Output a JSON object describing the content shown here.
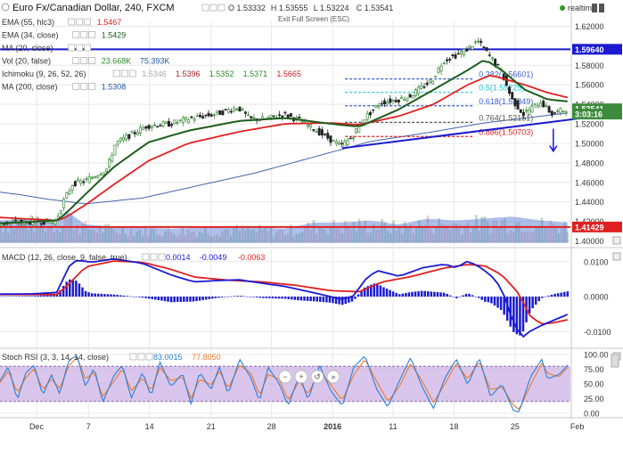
{
  "header": {
    "symbol_title": "Euro Fx/Canadian Dollar, 240, FXCM",
    "ohlc": {
      "o": "O 1.53332",
      "h": "H 1.53555",
      "l": "L 1.53224",
      "c": "C 1.53541"
    },
    "realtime_label": "realtime",
    "exit_fullscreen": "Exit Full Screen (ESC)"
  },
  "colors": {
    "background": "#ffffff",
    "grid": "#e8e8e8",
    "up_candle": "#3c8a3c",
    "down_candle": "#222222",
    "ema55": "#e02020",
    "ema34": "#1e5e1e",
    "ma200": "#4466aa",
    "macd": "#1a1ad0",
    "signal": "#e02020",
    "histogram": "#1a1ad0",
    "stoch_k": "#2a7fd6",
    "stoch_d": "#f07a28",
    "stoch_band": "#cdb3e6",
    "trendline": "#1a1ad0",
    "resistance": "#1a1ad0",
    "support": "#e02020"
  },
  "indicators": [
    {
      "label": "EMA (55, hlc3)",
      "values": [
        {
          "text": "1.5467",
          "color": "#e02020"
        }
      ]
    },
    {
      "label": "EMA (34, close)",
      "values": [
        {
          "text": "1.5429",
          "color": "#1e5e1e"
        }
      ]
    },
    {
      "label": "MA (20, close)",
      "values": []
    },
    {
      "label": "Vol (20, false)",
      "values": [
        {
          "text": "23.668K",
          "color": "#2a8a2a"
        },
        {
          "text": "75.393K",
          "color": "#2255aa"
        }
      ]
    },
    {
      "label": "Ichimoku (9, 26, 52, 26)",
      "values": [
        {
          "text": "1.5346",
          "color": "#aaaaaa"
        },
        {
          "text": "1.5396",
          "color": "#aa2222"
        },
        {
          "text": "1.5352",
          "color": "#2a8a2a"
        },
        {
          "text": "1.5371",
          "color": "#2a8a2a"
        },
        {
          "text": "1.5665",
          "color": "#cc2222"
        }
      ]
    },
    {
      "label": "MA (200, close)",
      "values": [
        {
          "text": "1.5308",
          "color": "#2255aa"
        }
      ]
    }
  ],
  "fibonacci": [
    {
      "label": "0.382(1.56601)",
      "price": 1.56601,
      "color": "#3a5fcd"
    },
    {
      "label": "0.5(1.55225)",
      "price": 1.55225,
      "color": "#22c5d5"
    },
    {
      "label": "0.618(1.53849)",
      "price": 1.53849,
      "color": "#3a5fcd"
    },
    {
      "label": "0.764(1.52151)",
      "price": 1.52151,
      "color": "#555555"
    },
    {
      "label": "0.886(1.50703)",
      "price": 1.50703,
      "color": "#e02020"
    }
  ],
  "price_axis": {
    "ticks": [
      "1.62000",
      "1.58000",
      "1.56000",
      "1.54000",
      "1.52000",
      "1.50000",
      "1.48000",
      "1.46000",
      "1.44000",
      "1.42000",
      "1.40000"
    ],
    "tick_values": [
      1.62,
      1.58,
      1.56,
      1.54,
      1.52,
      1.5,
      1.48,
      1.46,
      1.44,
      1.42,
      1.4
    ],
    "badges": [
      {
        "text": "1.59640",
        "price": 1.5964,
        "bg": "#1a1ad0"
      },
      {
        "text": "1.53541",
        "price": 1.53541,
        "bg": "#3c8a3c"
      },
      {
        "text": "3:03:16",
        "price": 1.53,
        "bg": "#3c8a3c"
      },
      {
        "text": "1.41429",
        "price": 1.41429,
        "bg": "#e02020"
      }
    ]
  },
  "macd_panel": {
    "label": "MACD (12, 26, close, 9, false, true)",
    "values": [
      {
        "text": "0.0014",
        "color": "#1a1ad0"
      },
      {
        "text": "-0.0049",
        "color": "#1a1ad0"
      },
      {
        "text": "-0.0063",
        "color": "#e02020"
      }
    ],
    "ticks": [
      "0.0100",
      "0.0000",
      "-0.0100"
    ],
    "tick_values": [
      0.01,
      0,
      -0.01
    ]
  },
  "stoch_panel": {
    "label": "Stoch RSI (3, 3, 14, 14, close)",
    "values": [
      {
        "text": "83.0015",
        "color": "#2a7fd6"
      },
      {
        "text": "77.8050",
        "color": "#f07a28"
      }
    ],
    "ticks": [
      "100.00",
      "75.00",
      "50.00",
      "25.00",
      "0.00"
    ],
    "tick_values": [
      100,
      75,
      50,
      25,
      0
    ]
  },
  "time_axis": {
    "labels": [
      "Dec",
      "7",
      "14",
      "21",
      "28",
      "2016",
      "11",
      "18",
      "25",
      "Feb"
    ],
    "positions": [
      0.064,
      0.155,
      0.262,
      0.37,
      0.476,
      0.583,
      0.689,
      0.796,
      0.903,
      1.012
    ]
  },
  "chart_data": {
    "type": "candlestick",
    "symbol": "Euro Fx/Canadian Dollar, 240, FXCM",
    "ylim": [
      1.395,
      1.625
    ],
    "horizontal_lines": [
      {
        "price": 1.5964,
        "label": "1.59640",
        "color": "#1a1ad0"
      },
      {
        "price": 1.41429,
        "label": "1.41429",
        "color": "#e02020"
      }
    ],
    "trendline": {
      "from": [
        0.6,
        1.495
      ],
      "to": [
        1.035,
        1.527
      ],
      "color": "#1a1ad0"
    },
    "arrow": {
      "at": 0.97,
      "from": 1.515,
      "to": 1.492,
      "color": "#1a1ad0"
    },
    "series_anchors": {
      "price": [
        [
          0,
          1.418
        ],
        [
          0.07,
          1.42
        ],
        [
          0.1,
          1.42
        ],
        [
          0.115,
          1.442
        ],
        [
          0.13,
          1.459
        ],
        [
          0.15,
          1.461
        ],
        [
          0.19,
          1.474
        ],
        [
          0.205,
          1.5
        ],
        [
          0.22,
          1.505
        ],
        [
          0.26,
          1.518
        ],
        [
          0.3,
          1.52
        ],
        [
          0.34,
          1.526
        ],
        [
          0.38,
          1.53
        ],
        [
          0.42,
          1.537
        ],
        [
          0.44,
          1.525
        ],
        [
          0.47,
          1.525
        ],
        [
          0.5,
          1.53
        ],
        [
          0.53,
          1.523
        ],
        [
          0.56,
          1.512
        ],
        [
          0.6,
          1.497
        ],
        [
          0.62,
          1.507
        ],
        [
          0.64,
          1.525
        ],
        [
          0.67,
          1.542
        ],
        [
          0.7,
          1.545
        ],
        [
          0.72,
          1.548
        ],
        [
          0.76,
          1.565
        ],
        [
          0.78,
          1.585
        ],
        [
          0.8,
          1.59
        ],
        [
          0.82,
          1.596
        ],
        [
          0.84,
          1.605
        ],
        [
          0.86,
          1.59
        ],
        [
          0.88,
          1.575
        ],
        [
          0.9,
          1.545
        ],
        [
          0.92,
          1.53
        ],
        [
          0.95,
          1.543
        ],
        [
          0.97,
          1.53
        ],
        [
          0.995,
          1.535
        ]
      ],
      "ema34": [
        [
          0,
          1.418
        ],
        [
          0.1,
          1.421
        ],
        [
          0.115,
          1.428
        ],
        [
          0.15,
          1.448
        ],
        [
          0.2,
          1.476
        ],
        [
          0.26,
          1.501
        ],
        [
          0.33,
          1.513
        ],
        [
          0.42,
          1.523
        ],
        [
          0.5,
          1.526
        ],
        [
          0.58,
          1.52
        ],
        [
          0.63,
          1.517
        ],
        [
          0.7,
          1.535
        ],
        [
          0.76,
          1.555
        ],
        [
          0.82,
          1.575
        ],
        [
          0.85,
          1.586
        ],
        [
          0.88,
          1.575
        ],
        [
          0.92,
          1.555
        ],
        [
          0.96,
          1.545
        ],
        [
          0.995,
          1.543
        ]
      ],
      "ema55": [
        [
          0,
          1.424
        ],
        [
          0.1,
          1.421
        ],
        [
          0.115,
          1.424
        ],
        [
          0.15,
          1.437
        ],
        [
          0.2,
          1.458
        ],
        [
          0.26,
          1.482
        ],
        [
          0.33,
          1.5
        ],
        [
          0.42,
          1.512
        ],
        [
          0.5,
          1.52
        ],
        [
          0.58,
          1.521
        ],
        [
          0.63,
          1.519
        ],
        [
          0.7,
          1.528
        ],
        [
          0.76,
          1.54
        ],
        [
          0.82,
          1.56
        ],
        [
          0.86,
          1.57
        ],
        [
          0.92,
          1.56
        ],
        [
          0.96,
          1.552
        ],
        [
          0.995,
          1.547
        ]
      ],
      "ma200": [
        [
          0,
          1.45
        ],
        [
          0.04,
          1.447
        ],
        [
          0.08,
          1.443
        ],
        [
          0.15,
          1.438
        ],
        [
          0.25,
          1.444
        ],
        [
          0.35,
          1.457
        ],
        [
          0.45,
          1.47
        ],
        [
          0.55,
          1.486
        ],
        [
          0.65,
          1.502
        ],
        [
          0.75,
          1.511
        ],
        [
          0.85,
          1.521
        ],
        [
          0.95,
          1.528
        ],
        [
          0.995,
          1.531
        ]
      ],
      "macd": [
        [
          0,
          0.0007
        ],
        [
          0.06,
          0.0008
        ],
        [
          0.1,
          0.0012
        ],
        [
          0.12,
          0.0085
        ],
        [
          0.135,
          0.0105
        ],
        [
          0.16,
          0.0098
        ],
        [
          0.2,
          0.0108
        ],
        [
          0.25,
          0.0095
        ],
        [
          0.3,
          0.0062
        ],
        [
          0.34,
          0.0042
        ],
        [
          0.38,
          0.0046
        ],
        [
          0.42,
          0.0048
        ],
        [
          0.46,
          0.0038
        ],
        [
          0.5,
          0.0029
        ],
        [
          0.55,
          0.0011
        ],
        [
          0.6,
          -0.0008
        ],
        [
          0.62,
          0.0002
        ],
        [
          0.64,
          0.0048
        ],
        [
          0.66,
          0.0075
        ],
        [
          0.7,
          0.0058
        ],
        [
          0.74,
          0.0082
        ],
        [
          0.78,
          0.0093
        ],
        [
          0.8,
          0.0082
        ],
        [
          0.82,
          0.0102
        ],
        [
          0.84,
          0.0085
        ],
        [
          0.86,
          0.0062
        ],
        [
          0.88,
          0.0022
        ],
        [
          0.9,
          -0.0075
        ],
        [
          0.915,
          -0.0118
        ],
        [
          0.93,
          -0.0098
        ],
        [
          0.95,
          -0.0082
        ],
        [
          0.97,
          -0.0068
        ],
        [
          0.995,
          -0.0051
        ]
      ],
      "signal": [
        [
          0,
          0.0006
        ],
        [
          0.1,
          0.0006
        ],
        [
          0.12,
          0.0035
        ],
        [
          0.15,
          0.0085
        ],
        [
          0.2,
          0.0102
        ],
        [
          0.25,
          0.0098
        ],
        [
          0.3,
          0.0078
        ],
        [
          0.34,
          0.0056
        ],
        [
          0.4,
          0.0047
        ],
        [
          0.46,
          0.0042
        ],
        [
          0.52,
          0.0032
        ],
        [
          0.58,
          0.0017
        ],
        [
          0.63,
          0.0014
        ],
        [
          0.67,
          0.0042
        ],
        [
          0.72,
          0.0057
        ],
        [
          0.78,
          0.0082
        ],
        [
          0.82,
          0.0092
        ],
        [
          0.85,
          0.0088
        ],
        [
          0.88,
          0.0062
        ],
        [
          0.91,
          0.0008
        ],
        [
          0.93,
          -0.0058
        ],
        [
          0.95,
          -0.0078
        ],
        [
          0.97,
          -0.0075
        ],
        [
          0.995,
          -0.0066
        ]
      ],
      "stoch_k": [
        [
          0,
          55
        ],
        [
          0.015,
          80
        ],
        [
          0.03,
          22
        ],
        [
          0.045,
          68
        ],
        [
          0.06,
          82
        ],
        [
          0.075,
          30
        ],
        [
          0.09,
          66
        ],
        [
          0.105,
          32
        ],
        [
          0.12,
          90
        ],
        [
          0.135,
          98
        ],
        [
          0.15,
          45
        ],
        [
          0.165,
          78
        ],
        [
          0.18,
          18
        ],
        [
          0.2,
          65
        ],
        [
          0.215,
          82
        ],
        [
          0.23,
          25
        ],
        [
          0.25,
          70
        ],
        [
          0.265,
          28
        ],
        [
          0.28,
          88
        ],
        [
          0.3,
          45
        ],
        [
          0.32,
          68
        ],
        [
          0.335,
          15
        ],
        [
          0.35,
          70
        ],
        [
          0.37,
          40
        ],
        [
          0.385,
          80
        ],
        [
          0.4,
          32
        ],
        [
          0.42,
          92
        ],
        [
          0.44,
          60
        ],
        [
          0.455,
          20
        ],
        [
          0.47,
          78
        ],
        [
          0.49,
          50
        ],
        [
          0.505,
          12
        ],
        [
          0.525,
          66
        ],
        [
          0.54,
          22
        ],
        [
          0.56,
          82
        ],
        [
          0.58,
          38
        ],
        [
          0.6,
          12
        ],
        [
          0.62,
          78
        ],
        [
          0.64,
          98
        ],
        [
          0.66,
          42
        ],
        [
          0.68,
          10
        ],
        [
          0.7,
          55
        ],
        [
          0.72,
          95
        ],
        [
          0.74,
          45
        ],
        [
          0.76,
          8
        ],
        [
          0.78,
          60
        ],
        [
          0.8,
          92
        ],
        [
          0.82,
          48
        ],
        [
          0.84,
          95
        ],
        [
          0.86,
          28
        ],
        [
          0.88,
          50
        ],
        [
          0.9,
          5
        ],
        [
          0.91,
          2
        ],
        [
          0.93,
          62
        ],
        [
          0.95,
          92
        ],
        [
          0.96,
          58
        ],
        [
          0.98,
          66
        ],
        [
          0.995,
          82
        ]
      ],
      "stoch_d": [
        [
          0,
          52
        ],
        [
          0.015,
          72
        ],
        [
          0.03,
          35
        ],
        [
          0.045,
          60
        ],
        [
          0.06,
          76
        ],
        [
          0.075,
          40
        ],
        [
          0.09,
          58
        ],
        [
          0.105,
          42
        ],
        [
          0.12,
          80
        ],
        [
          0.135,
          95
        ],
        [
          0.15,
          58
        ],
        [
          0.165,
          70
        ],
        [
          0.18,
          28
        ],
        [
          0.2,
          55
        ],
        [
          0.215,
          76
        ],
        [
          0.23,
          38
        ],
        [
          0.25,
          60
        ],
        [
          0.265,
          38
        ],
        [
          0.28,
          78
        ],
        [
          0.3,
          55
        ],
        [
          0.32,
          62
        ],
        [
          0.335,
          25
        ],
        [
          0.35,
          58
        ],
        [
          0.37,
          48
        ],
        [
          0.385,
          72
        ],
        [
          0.4,
          42
        ],
        [
          0.42,
          82
        ],
        [
          0.44,
          68
        ],
        [
          0.455,
          30
        ],
        [
          0.47,
          66
        ],
        [
          0.49,
          58
        ],
        [
          0.505,
          22
        ],
        [
          0.525,
          55
        ],
        [
          0.54,
          32
        ],
        [
          0.56,
          72
        ],
        [
          0.58,
          48
        ],
        [
          0.6,
          22
        ],
        [
          0.62,
          65
        ],
        [
          0.64,
          92
        ],
        [
          0.66,
          55
        ],
        [
          0.68,
          20
        ],
        [
          0.7,
          45
        ],
        [
          0.72,
          85
        ],
        [
          0.74,
          55
        ],
        [
          0.76,
          18
        ],
        [
          0.78,
          50
        ],
        [
          0.8,
          85
        ],
        [
          0.82,
          58
        ],
        [
          0.84,
          88
        ],
        [
          0.86,
          40
        ],
        [
          0.88,
          45
        ],
        [
          0.9,
          14
        ],
        [
          0.91,
          6
        ],
        [
          0.93,
          48
        ],
        [
          0.95,
          85
        ],
        [
          0.96,
          68
        ],
        [
          0.98,
          62
        ],
        [
          0.995,
          78
        ]
      ],
      "volume": [
        [
          0,
          0.55
        ],
        [
          0.05,
          0.6
        ],
        [
          0.1,
          0.5
        ],
        [
          0.115,
          0.8
        ],
        [
          0.15,
          0.45
        ],
        [
          0.2,
          0.4
        ],
        [
          0.3,
          0.35
        ],
        [
          0.4,
          0.4
        ],
        [
          0.5,
          0.35
        ],
        [
          0.55,
          0.5
        ],
        [
          0.6,
          0.5
        ],
        [
          0.65,
          0.55
        ],
        [
          0.7,
          0.45
        ],
        [
          0.75,
          0.6
        ],
        [
          0.8,
          0.55
        ],
        [
          0.85,
          0.6
        ],
        [
          0.9,
          0.65
        ],
        [
          0.95,
          0.55
        ],
        [
          0.995,
          0.5
        ]
      ]
    }
  }
}
